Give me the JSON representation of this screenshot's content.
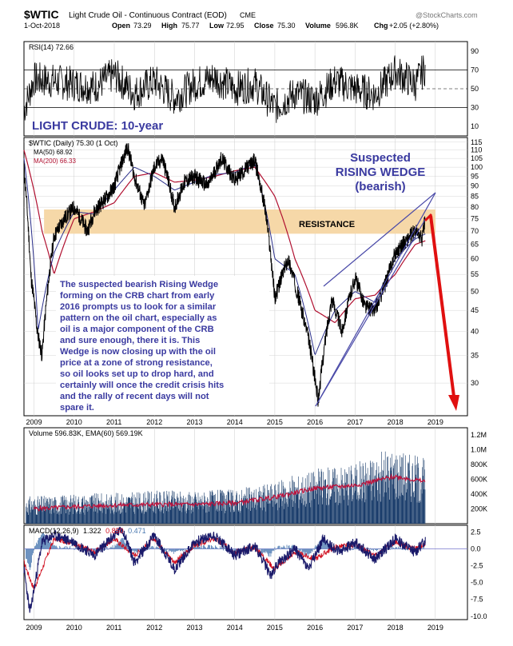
{
  "header": {
    "symbol": "$WTIC",
    "name": "Light Crude Oil - Continuous Contract (EOD)",
    "exchange": "CME",
    "date": "1-Oct-2018",
    "open_label": "Open",
    "open": "73.29",
    "high_label": "High",
    "high": "75.77",
    "low_label": "Low",
    "low": "72.95",
    "close_label": "Close",
    "close": "75.30",
    "volume_label": "Volume",
    "volume": "596.8K",
    "chg_label": "Chg",
    "chg": "+2.05 (+2.80%)",
    "watermark": "@StockCharts.com"
  },
  "colors": {
    "panel_border": "#000000",
    "price_line": "#000000",
    "ma50": "#2a2f8a",
    "ma200": "#b01030",
    "resistance_band": "#f6d8a8",
    "wedge": "#4a4aa8",
    "arrow": "#e01010",
    "annotation": "#3a3aa0",
    "volume_bar": "#1a3d6b",
    "volume_ema": "#c0103a",
    "macd_line": "#1a1a6a",
    "signal_line": "#d01020",
    "hist": "#4a78b0",
    "grid": "#cccccc",
    "zero_line": "#7777cc"
  },
  "rsi_panel": {
    "legend": "RSI(14) 72.66",
    "title": "LIGHT CRUDE: 10-year",
    "ticks": [
      "90",
      "70",
      "50",
      "30",
      "10"
    ]
  },
  "price_panel": {
    "legend_main": "$WTIC (Daily) 75.30 (1 Oct)",
    "legend_ma50": "MA(50) 68.92",
    "legend_ma200": "MA(200) 66.33",
    "wedge_title_1": "Suspected",
    "wedge_title_2": "RISING WEDGE",
    "wedge_title_3": "(bearish)",
    "resistance_label": "RESISTANCE",
    "commentary": [
      "The suspected bearish Rising Wedge",
      "forming on the CRB chart from early",
      "2016 prompts us to look for a similar",
      "pattern on the oil chart, especially as",
      "oil is a major component of the CRB",
      "and sure enough, there it is. This",
      "Wedge is now closing up with the oil",
      "price at a zone of strong resistance,",
      "so oil looks set up to drop hard, and",
      "certainly will once the credit crisis hits",
      "and the rally of recent days will not",
      "spare it."
    ],
    "ticks": [
      "115",
      "110",
      "105",
      "100",
      "95",
      "90",
      "85",
      "80",
      "75",
      "70",
      "65",
      "60",
      "55",
      "50",
      "45",
      "40",
      "35",
      "30"
    ]
  },
  "volume_panel": {
    "legend": "Volume 596.83K, EMA(60) 569.19K",
    "ticks": [
      "1.2M",
      "1.0M",
      "800K",
      "600K",
      "400K",
      "200K"
    ]
  },
  "macd_panel": {
    "legend_prefix": "MACD(12,26,9)",
    "legend_macd": "1.322",
    "legend_signal": "0.850",
    "legend_hist": "0.471",
    "ticks": [
      "2.5",
      "0.0",
      "-2.5",
      "-5.0",
      "-7.5",
      "-10.0"
    ]
  },
  "x_ticks": [
    "2009",
    "2010",
    "2011",
    "2012",
    "2013",
    "2014",
    "2015",
    "2016",
    "2017",
    "2018",
    "2019"
  ],
  "chart_data": [
    {
      "type": "line",
      "series": [
        {
          "name": "RSI(14)",
          "x": [
            "2008.75",
            "2009.0",
            "2009.5",
            "2010.0",
            "2010.5",
            "2011.0",
            "2011.5",
            "2012.0",
            "2012.5",
            "2013.0",
            "2013.5",
            "2014.0",
            "2014.5",
            "2015.0",
            "2015.5",
            "2016.0",
            "2016.5",
            "2017.0",
            "2017.5",
            "2018.0",
            "2018.5",
            "2018.75"
          ],
          "values": [
            28,
            60,
            58,
            55,
            52,
            65,
            45,
            58,
            40,
            55,
            62,
            50,
            55,
            30,
            45,
            38,
            58,
            50,
            44,
            68,
            55,
            72.66
          ]
        }
      ],
      "ylim": [
        0,
        100
      ]
    },
    {
      "type": "line",
      "series": [
        {
          "name": "$WTIC",
          "x": [
            2008.75,
            2008.92,
            2009.08,
            2009.2,
            2009.5,
            2009.75,
            2010.0,
            2010.33,
            2010.5,
            2010.83,
            2011.0,
            2011.33,
            2011.5,
            2011.75,
            2012.0,
            2012.2,
            2012.5,
            2012.75,
            2013.0,
            2013.33,
            2013.67,
            2014.0,
            2014.5,
            2014.75,
            2015.0,
            2015.33,
            2015.67,
            2015.85,
            2016.08,
            2016.42,
            2016.67,
            2017.0,
            2017.25,
            2017.5,
            2017.75,
            2018.0,
            2018.25,
            2018.5,
            2018.67,
            2018.75
          ],
          "values": [
            100,
            55,
            40,
            35,
            68,
            75,
            80,
            70,
            78,
            85,
            90,
            112,
            95,
            80,
            100,
            105,
            80,
            92,
            95,
            90,
            105,
            93,
            104,
            80,
            48,
            60,
            45,
            38,
            27,
            48,
            40,
            54,
            46,
            45,
            52,
            62,
            66,
            70,
            67,
            75.3
          ]
        },
        {
          "name": "MA(50)",
          "x": [
            2008.75,
            2009.1,
            2009.5,
            2010.0,
            2010.5,
            2011.0,
            2011.5,
            2012.0,
            2012.5,
            2013.0,
            2013.5,
            2014.0,
            2014.5,
            2015.0,
            2015.5,
            2016.0,
            2016.5,
            2017.0,
            2017.5,
            2018.0,
            2018.5,
            2018.75
          ],
          "values": [
            105,
            40,
            62,
            78,
            77,
            88,
            100,
            95,
            88,
            92,
            96,
            97,
            102,
            60,
            55,
            35,
            45,
            50,
            47,
            60,
            67,
            68.92
          ]
        },
        {
          "name": "MA(200)",
          "x": [
            2008.75,
            2009.2,
            2009.5,
            2010.0,
            2010.5,
            2011.0,
            2011.5,
            2012.0,
            2012.5,
            2013.0,
            2013.5,
            2014.0,
            2014.5,
            2015.0,
            2015.5,
            2016.0,
            2016.5,
            2017.0,
            2017.5,
            2018.0,
            2018.5,
            2018.75
          ],
          "values": [
            110,
            70,
            55,
            75,
            78,
            82,
            95,
            97,
            92,
            93,
            95,
            98,
            100,
            85,
            60,
            45,
            42,
            48,
            49,
            55,
            65,
            66.33
          ]
        }
      ],
      "resistance_zone": [
        69,
        79
      ],
      "ylim": [
        25,
        118
      ],
      "yscale": "log"
    },
    {
      "type": "bar",
      "series": [
        {
          "name": "Volume",
          "x": [
            "2009",
            "2010",
            "2011",
            "2012",
            "2013",
            "2014",
            "2015",
            "2016",
            "2017",
            "2018",
            "2018.75"
          ],
          "values": [
            250,
            270,
            280,
            300,
            300,
            310,
            380,
            500,
            560,
            700,
            596.83
          ]
        },
        {
          "name": "EMA(60)",
          "x": [
            "2009",
            "2010",
            "2011",
            "2012",
            "2013",
            "2014",
            "2015",
            "2016",
            "2017",
            "2018",
            "2018.75"
          ],
          "values": [
            200,
            230,
            250,
            260,
            260,
            280,
            360,
            480,
            520,
            640,
            569.19
          ]
        }
      ],
      "unit": "K",
      "ylim": [
        0,
        1300
      ]
    },
    {
      "type": "line",
      "series": [
        {
          "name": "MACD(12,26,9)",
          "x": [
            2008.75,
            2008.9,
            2009.2,
            2009.5,
            2010.0,
            2010.5,
            2011.0,
            2011.2,
            2011.5,
            2012.0,
            2012.5,
            2013.0,
            2013.5,
            2014.0,
            2014.5,
            2014.9,
            2015.1,
            2015.5,
            2015.85,
            2016.2,
            2016.6,
            2017.0,
            2017.5,
            2018.0,
            2018.5,
            2018.75
          ],
          "values": [
            -3,
            -9.5,
            1,
            2,
            1,
            -1,
            2,
            3,
            -2,
            2,
            -3,
            1,
            2,
            -1,
            0.5,
            -4,
            -2,
            0,
            -3,
            1.5,
            -0.5,
            1,
            -1.5,
            1.5,
            -0.5,
            1.322
          ]
        },
        {
          "name": "signal",
          "x": [
            2008.75,
            2009.0,
            2009.5,
            2010.0,
            2010.5,
            2011.0,
            2011.5,
            2012.0,
            2012.5,
            2013.0,
            2013.5,
            2014.0,
            2014.5,
            2015.0,
            2015.5,
            2016.0,
            2016.5,
            2017.0,
            2017.5,
            2018.0,
            2018.5,
            2018.75
          ],
          "values": [
            -2,
            -6,
            1.5,
            0.8,
            -0.5,
            1.5,
            -1,
            1.5,
            -2,
            0.5,
            1.5,
            -0.5,
            0.3,
            -3,
            -0.5,
            -1.5,
            0.3,
            0.6,
            -1,
            1,
            0,
            0.85
          ]
        }
      ],
      "ylim": [
        -10.5,
        3.5
      ]
    }
  ]
}
